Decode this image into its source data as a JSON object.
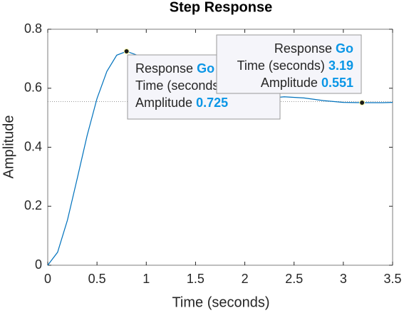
{
  "chart_data": {
    "type": "line",
    "title": "Step Response",
    "x_label": "Time (seconds)",
    "y_label": "Amplitude",
    "xlim": [
      0,
      3.5
    ],
    "ylim": [
      0,
      0.8
    ],
    "xticks": [
      0,
      0.5,
      1,
      1.5,
      2,
      2.5,
      3,
      3.5
    ],
    "yticks": [
      0,
      0.2,
      0.4,
      0.6,
      0.8
    ],
    "grid": false,
    "steady_state": 0.555,
    "series": [
      {
        "name": "Go",
        "color": "#0072bd",
        "x": [
          0,
          0.1,
          0.2,
          0.3,
          0.4,
          0.5,
          0.6,
          0.7,
          0.8,
          0.9,
          1.0,
          1.2,
          1.4,
          1.6,
          1.8,
          2.0,
          2.2,
          2.4,
          2.6,
          2.8,
          3.0,
          3.2,
          3.4,
          3.5
        ],
        "values": [
          0,
          0.044,
          0.153,
          0.295,
          0.44,
          0.565,
          0.657,
          0.712,
          0.725,
          0.713,
          0.679,
          0.59,
          0.523,
          0.502,
          0.517,
          0.544,
          0.565,
          0.571,
          0.567,
          0.558,
          0.552,
          0.551,
          0.551,
          0.552
        ]
      }
    ],
    "datatips": [
      {
        "series_label": "Response",
        "series_name": "Go",
        "x_label": "Time (seconds)",
        "x": 0.8,
        "y_label": "Amplitude",
        "y": 0.725
      },
      {
        "series_label": "Response",
        "series_name": "Go",
        "x_label": "Time (seconds)",
        "x": 3.19,
        "y_label": "Amplitude",
        "y": 0.551
      }
    ]
  }
}
